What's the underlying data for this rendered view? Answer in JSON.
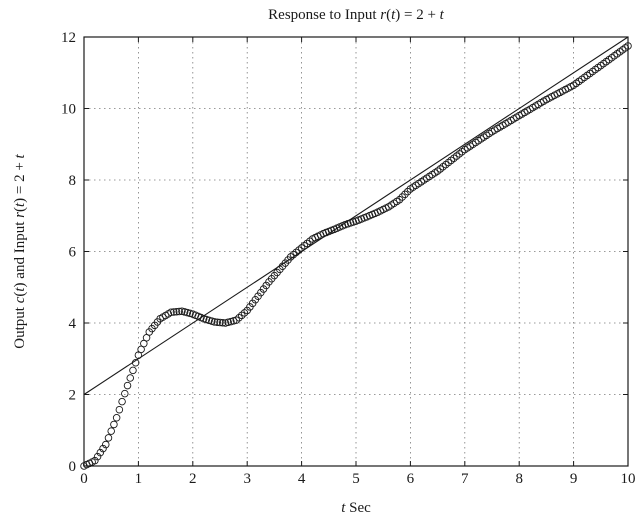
{
  "chart_data": {
    "type": "line",
    "title_parts": [
      "Response to Input ",
      "r",
      "(",
      "t",
      ") = 2 + ",
      "t"
    ],
    "xlabel_parts": [
      "t",
      " Sec"
    ],
    "ylabel_parts": [
      "Output ",
      "c",
      "(",
      "t",
      ") and Input ",
      "r",
      "(",
      "t",
      ") = 2 + ",
      "t"
    ],
    "xlim": [
      0,
      10
    ],
    "ylim": [
      0,
      12
    ],
    "x_ticks": [
      0,
      1,
      2,
      3,
      4,
      5,
      6,
      7,
      8,
      9,
      10
    ],
    "y_ticks": [
      0,
      2,
      4,
      6,
      8,
      10,
      12
    ],
    "grid": true,
    "series": [
      {
        "style": "solid line",
        "x": [
          0,
          10
        ],
        "y": [
          2,
          12
        ]
      },
      {
        "style": "circle markers",
        "x": [
          0,
          0.2,
          0.4,
          0.6,
          0.8,
          1.0,
          1.2,
          1.4,
          1.6,
          1.8,
          2.0,
          2.2,
          2.4,
          2.6,
          2.8,
          3.0,
          3.2,
          3.4,
          3.6,
          3.8,
          4.0,
          4.2,
          4.4,
          4.6,
          4.8,
          5.0,
          5.2,
          5.4,
          5.6,
          5.8,
          6.0,
          6.5,
          7.0,
          7.5,
          8.0,
          8.5,
          9.0,
          9.5,
          10.0
        ],
        "y": [
          0,
          0.15,
          0.6,
          1.35,
          2.25,
          3.1,
          3.75,
          4.12,
          4.3,
          4.33,
          4.25,
          4.12,
          4.03,
          4.0,
          4.08,
          4.35,
          4.75,
          5.15,
          5.5,
          5.85,
          6.1,
          6.35,
          6.5,
          6.62,
          6.75,
          6.85,
          6.97,
          7.1,
          7.25,
          7.45,
          7.75,
          8.25,
          8.85,
          9.35,
          9.8,
          10.25,
          10.65,
          11.2,
          11.75
        ]
      }
    ]
  }
}
